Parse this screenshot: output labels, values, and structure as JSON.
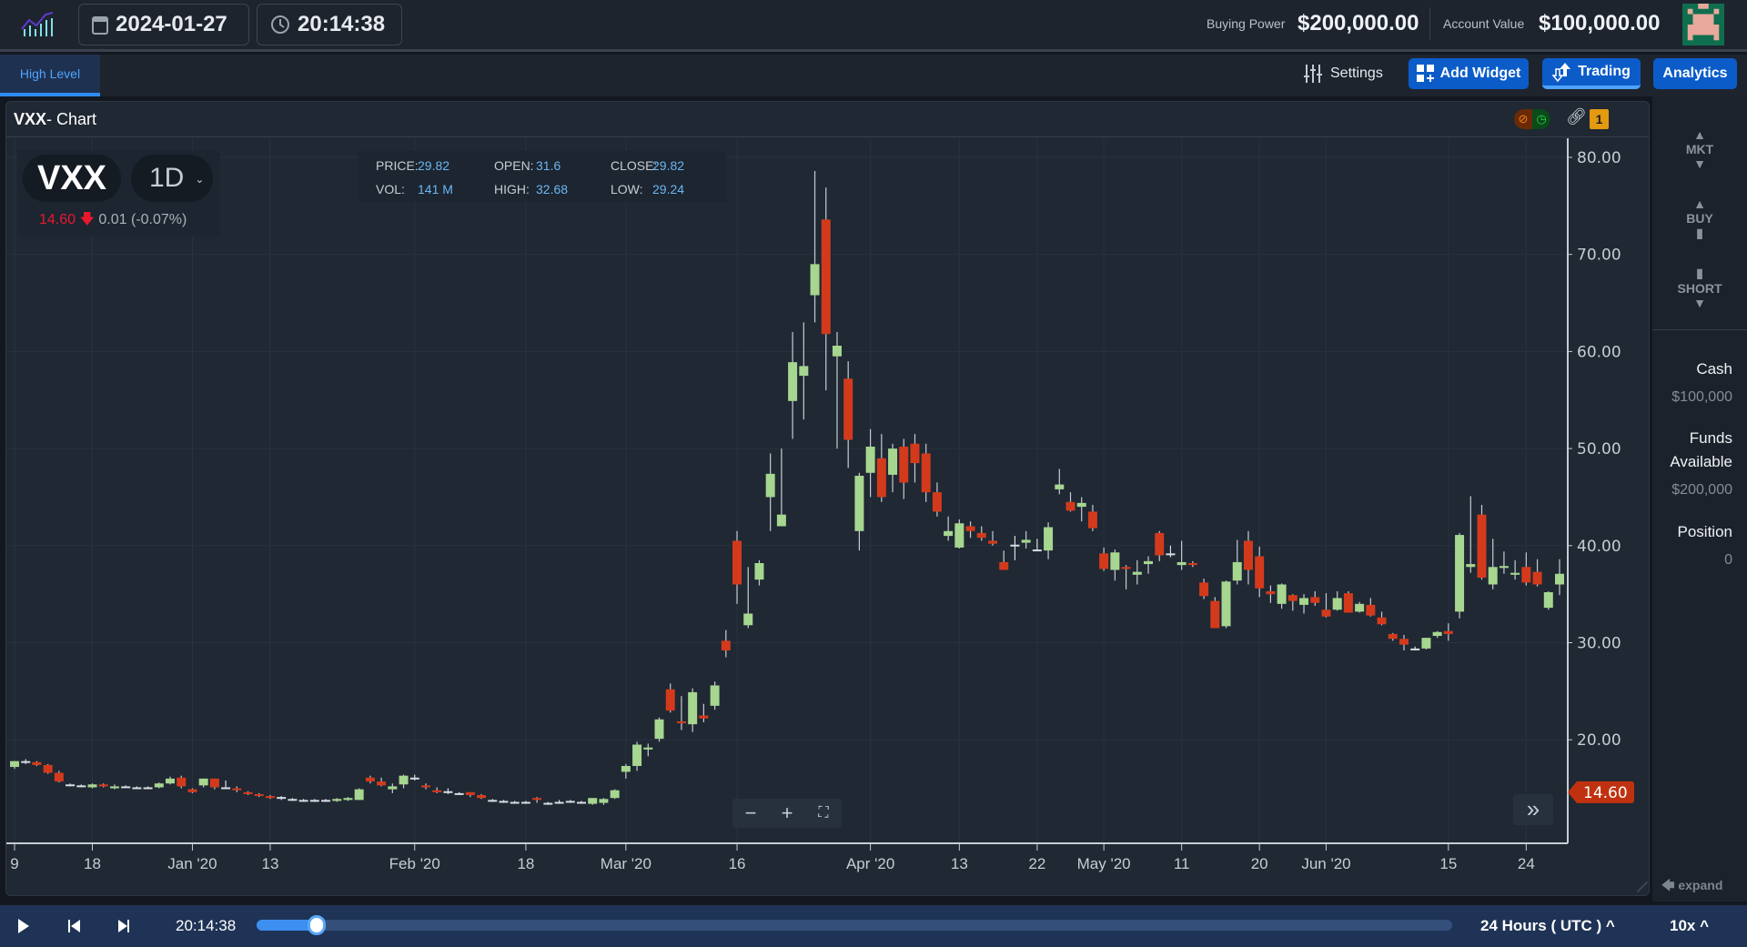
{
  "header": {
    "date": "2024-01-27",
    "time": "20:14:38",
    "buying_power_label": "Buying Power",
    "buying_power": "$200,000.00",
    "account_value_label": "Account Value",
    "account_value": "$100,000.00"
  },
  "tabs": [
    {
      "label": "High Level",
      "active": true
    }
  ],
  "toolbar": {
    "settings": "Settings",
    "add_widget": "Add Widget",
    "trading": "Trading",
    "analytics": "Analytics"
  },
  "panel": {
    "symbol": "VXX",
    "title_suffix": " - Chart",
    "link_badge": "1"
  },
  "quote": {
    "symbol": "VXX",
    "interval": "1D",
    "last": "14.60",
    "change": "0.01 (-0.07%)",
    "price_label": "PRICE:",
    "price": "29.82",
    "open_label": "OPEN:",
    "open": "31.6",
    "close_label": "CLOSE:",
    "close": "29.82",
    "vol_label": "VOL:",
    "vol": "141 M",
    "high_label": "HIGH:",
    "high": "32.68",
    "low_label": "LOW:",
    "low": "29.24"
  },
  "colors": {
    "up": "#a6d68f",
    "down": "#d33a1c",
    "accent": "#0b5cc9"
  },
  "chart_data": {
    "type": "candlestick",
    "ylim": [
      11,
      82
    ],
    "y_ticks": [
      "80.00",
      "70.00",
      "60.00",
      "50.00",
      "40.00",
      "30.00",
      "20.00"
    ],
    "y_tick_values": [
      80,
      70,
      60,
      50,
      40,
      30,
      20
    ],
    "last_price": 14.6,
    "last_price_label": "14.60",
    "x_ticks": [
      {
        "label": "9",
        "i": 0
      },
      {
        "label": "18",
        "i": 7
      },
      {
        "label": "Jan '20",
        "i": 16
      },
      {
        "label": "13",
        "i": 23
      },
      {
        "label": "Feb '20",
        "i": 36
      },
      {
        "label": "18",
        "i": 46
      },
      {
        "label": "Mar '20",
        "i": 55
      },
      {
        "label": "16",
        "i": 65
      },
      {
        "label": "Apr '20",
        "i": 77
      },
      {
        "label": "13",
        "i": 85
      },
      {
        "label": "22",
        "i": 92
      },
      {
        "label": "May '20",
        "i": 98
      },
      {
        "label": "11",
        "i": 105
      },
      {
        "label": "20",
        "i": 112
      },
      {
        "label": "Jun '20",
        "i": 118
      },
      {
        "label": "15",
        "i": 129
      },
      {
        "label": "24",
        "i": 136
      }
    ],
    "ohlc": [
      [
        17.2,
        17.8,
        17.0,
        17.8
      ],
      [
        17.8,
        18.0,
        17.5,
        17.7
      ],
      [
        17.7,
        17.8,
        17.3,
        17.4
      ],
      [
        17.4,
        17.5,
        16.5,
        16.6
      ],
      [
        16.6,
        16.8,
        15.6,
        15.7
      ],
      [
        15.4,
        15.5,
        15.2,
        15.3
      ],
      [
        15.3,
        15.4,
        15.1,
        15.3
      ],
      [
        15.1,
        15.5,
        15.0,
        15.4
      ],
      [
        15.4,
        15.5,
        15.1,
        15.2
      ],
      [
        15.0,
        15.4,
        14.9,
        15.2
      ],
      [
        15.2,
        15.3,
        15.1,
        15.2
      ],
      [
        15.1,
        15.2,
        15.0,
        15.1
      ],
      [
        15.1,
        15.2,
        15.0,
        15.1
      ],
      [
        15.1,
        15.6,
        15.0,
        15.5
      ],
      [
        15.5,
        16.2,
        15.4,
        16.0
      ],
      [
        16.1,
        16.3,
        15.0,
        15.2
      ],
      [
        14.9,
        15.0,
        14.5,
        14.6
      ],
      [
        15.3,
        16.0,
        15.1,
        16.0
      ],
      [
        16.0,
        16.0,
        14.9,
        15.1
      ],
      [
        15.1,
        15.8,
        15.0,
        15.1
      ],
      [
        15.0,
        15.2,
        14.6,
        14.8
      ],
      [
        14.6,
        14.7,
        14.3,
        14.4
      ],
      [
        14.4,
        14.5,
        14.1,
        14.2
      ],
      [
        14.2,
        14.3,
        13.9,
        14.0
      ],
      [
        14.0,
        14.2,
        13.8,
        14.1
      ],
      [
        13.9,
        14.0,
        13.7,
        13.9
      ],
      [
        13.7,
        13.9,
        13.6,
        13.8
      ],
      [
        13.8,
        13.9,
        13.6,
        13.8
      ],
      [
        13.7,
        13.9,
        13.6,
        13.8
      ],
      [
        13.7,
        14.0,
        13.6,
        13.9
      ],
      [
        13.8,
        14.1,
        13.7,
        14.0
      ],
      [
        13.8,
        15.0,
        13.8,
        14.9
      ],
      [
        16.1,
        16.3,
        15.5,
        15.7
      ],
      [
        15.7,
        16.1,
        15.2,
        15.3
      ],
      [
        14.9,
        15.5,
        14.5,
        15.2
      ],
      [
        15.4,
        16.4,
        15.0,
        16.3
      ],
      [
        16.1,
        16.4,
        15.8,
        16.0
      ],
      [
        15.3,
        15.5,
        14.9,
        15.1
      ],
      [
        14.8,
        15.1,
        14.5,
        14.6
      ],
      [
        14.7,
        15.0,
        14.4,
        14.7
      ],
      [
        14.5,
        14.6,
        14.3,
        14.4
      ],
      [
        14.6,
        14.6,
        14.1,
        14.3
      ],
      [
        14.3,
        14.4,
        13.9,
        14.0
      ],
      [
        13.8,
        13.9,
        13.6,
        13.7
      ],
      [
        13.7,
        13.8,
        13.5,
        13.7
      ],
      [
        13.6,
        13.7,
        13.4,
        13.6
      ],
      [
        13.6,
        13.7,
        13.4,
        13.6
      ],
      [
        14.0,
        14.1,
        13.5,
        13.8
      ],
      [
        13.5,
        13.6,
        13.3,
        13.5
      ],
      [
        13.5,
        13.8,
        13.4,
        13.6
      ],
      [
        13.7,
        13.8,
        13.5,
        13.7
      ],
      [
        13.6,
        13.7,
        13.4,
        13.5
      ],
      [
        13.4,
        14.0,
        13.3,
        14.0
      ],
      [
        13.5,
        14.0,
        13.3,
        13.9
      ],
      [
        14.0,
        14.9,
        13.9,
        14.8
      ],
      [
        16.7,
        17.5,
        16.0,
        17.3
      ],
      [
        17.3,
        19.8,
        16.8,
        19.5
      ],
      [
        19.0,
        19.6,
        18.3,
        19.2
      ],
      [
        20.1,
        22.3,
        19.8,
        22.1
      ],
      [
        25.2,
        25.8,
        22.8,
        23.0
      ],
      [
        21.9,
        24.5,
        21.0,
        21.7
      ],
      [
        21.6,
        25.3,
        20.8,
        24.9
      ],
      [
        22.5,
        23.7,
        21.8,
        22.2
      ],
      [
        23.5,
        26.0,
        23.1,
        25.6
      ],
      [
        30.2,
        31.3,
        28.5,
        29.2
      ],
      [
        40.5,
        41.5,
        34.0,
        36.0
      ],
      [
        31.8,
        37.8,
        31.5,
        33.0
      ],
      [
        36.5,
        38.5,
        35.9,
        38.2
      ],
      [
        45.0,
        49.5,
        41.5,
        47.4
      ],
      [
        42.0,
        50.0,
        42.0,
        43.2
      ],
      [
        54.9,
        62.0,
        51.0,
        58.9
      ],
      [
        57.5,
        63.0,
        53.0,
        58.5
      ],
      [
        65.8,
        78.6,
        63.0,
        69.0
      ],
      [
        73.6,
        76.9,
        56.0,
        61.8
      ],
      [
        59.5,
        62.0,
        50.0,
        60.6
      ],
      [
        57.2,
        59.0,
        48.0,
        50.9
      ],
      [
        41.5,
        47.5,
        39.5,
        47.2
      ],
      [
        47.5,
        52.0,
        45.0,
        50.2
      ],
      [
        49.0,
        51.5,
        44.5,
        45.0
      ],
      [
        47.3,
        50.5,
        45.5,
        50.0
      ],
      [
        50.2,
        51.0,
        44.8,
        46.5
      ],
      [
        50.5,
        51.5,
        46.5,
        48.5
      ],
      [
        49.5,
        50.5,
        44.5,
        45.5
      ],
      [
        45.5,
        46.5,
        43.0,
        43.5
      ],
      [
        41.0,
        43.0,
        40.5,
        41.5
      ],
      [
        39.8,
        42.7,
        39.7,
        42.3
      ],
      [
        42.0,
        42.5,
        40.8,
        41.5
      ],
      [
        41.3,
        42.0,
        40.5,
        40.8
      ],
      [
        40.5,
        41.5,
        40.0,
        40.2
      ],
      [
        38.3,
        39.5,
        37.5,
        37.5
      ],
      [
        40.0,
        41.0,
        38.5,
        40.1
      ],
      [
        40.3,
        41.5,
        39.7,
        40.6
      ],
      [
        39.5,
        40.7,
        39.5,
        39.6
      ],
      [
        39.5,
        42.4,
        38.6,
        41.9
      ],
      [
        45.8,
        47.9,
        45.3,
        46.3
      ],
      [
        44.5,
        45.5,
        43.5,
        43.6
      ],
      [
        44.0,
        45.0,
        42.5,
        44.4
      ],
      [
        43.5,
        44.2,
        41.5,
        41.8
      ],
      [
        39.2,
        39.8,
        37.4,
        37.6
      ],
      [
        37.5,
        39.6,
        36.4,
        39.3
      ],
      [
        37.8,
        38.0,
        35.5,
        37.6
      ],
      [
        37.0,
        38.5,
        36.0,
        37.3
      ],
      [
        38.1,
        38.9,
        37.1,
        38.4
      ],
      [
        41.3,
        41.5,
        38.4,
        39.0
      ],
      [
        39.2,
        40.0,
        38.8,
        39.1
      ],
      [
        38.0,
        40.5,
        37.5,
        38.3
      ],
      [
        38.2,
        38.4,
        37.8,
        38.0
      ],
      [
        36.2,
        36.6,
        34.5,
        34.8
      ],
      [
        34.3,
        34.7,
        31.5,
        31.5
      ],
      [
        31.7,
        36.4,
        31.5,
        36.3
      ],
      [
        36.4,
        40.6,
        36.0,
        38.3
      ],
      [
        40.5,
        41.5,
        36.0,
        37.5
      ],
      [
        38.9,
        39.9,
        34.7,
        35.6
      ],
      [
        35.3,
        35.9,
        34.1,
        35.0
      ],
      [
        34.0,
        36.1,
        33.5,
        36.0
      ],
      [
        34.9,
        35.0,
        33.3,
        34.3
      ],
      [
        33.9,
        35.0,
        33.0,
        34.6
      ],
      [
        34.7,
        35.3,
        33.8,
        34.1
      ],
      [
        33.4,
        35.1,
        32.6,
        32.7
      ],
      [
        33.4,
        35.3,
        33.3,
        34.6
      ],
      [
        35.1,
        35.3,
        33.1,
        33.1
      ],
      [
        33.2,
        34.2,
        33.1,
        34.0
      ],
      [
        33.9,
        34.6,
        32.7,
        32.8
      ],
      [
        32.6,
        33.2,
        31.8,
        31.9
      ],
      [
        30.9,
        31.0,
        30.2,
        30.4
      ],
      [
        30.4,
        30.8,
        29.2,
        29.8
      ],
      [
        29.3,
        29.6,
        29.2,
        29.4
      ],
      [
        29.4,
        30.5,
        29.3,
        30.5
      ],
      [
        30.7,
        31.2,
        30.5,
        31.1
      ],
      [
        31.2,
        32.0,
        30.2,
        30.9
      ],
      [
        33.2,
        41.3,
        32.5,
        41.1
      ],
      [
        37.8,
        45.1,
        37.2,
        38.1
      ],
      [
        43.2,
        44.2,
        36.5,
        36.7
      ],
      [
        36.0,
        40.7,
        35.5,
        37.8
      ],
      [
        37.7,
        39.4,
        37.1,
        37.9
      ],
      [
        37.0,
        38.5,
        36.5,
        37.2
      ],
      [
        37.8,
        39.3,
        35.9,
        36.2
      ],
      [
        37.3,
        38.6,
        35.8,
        36.0
      ],
      [
        33.6,
        35.3,
        33.4,
        35.2
      ],
      [
        36.0,
        38.6,
        34.9,
        37.1
      ]
    ]
  },
  "sidebar": {
    "mkt": "MKT",
    "buy": "BUY",
    "short": "SHORT",
    "cash_label": "Cash",
    "cash": "$100,000",
    "funds_label_1": "Funds",
    "funds_label_2": "Available",
    "funds": "$200,000",
    "position_label": "Position",
    "position": "0",
    "expand": "expand"
  },
  "playback": {
    "time": "20:14:38",
    "progress": 0.05,
    "timezone": "24 Hours ( UTC )",
    "speed": "10x"
  }
}
